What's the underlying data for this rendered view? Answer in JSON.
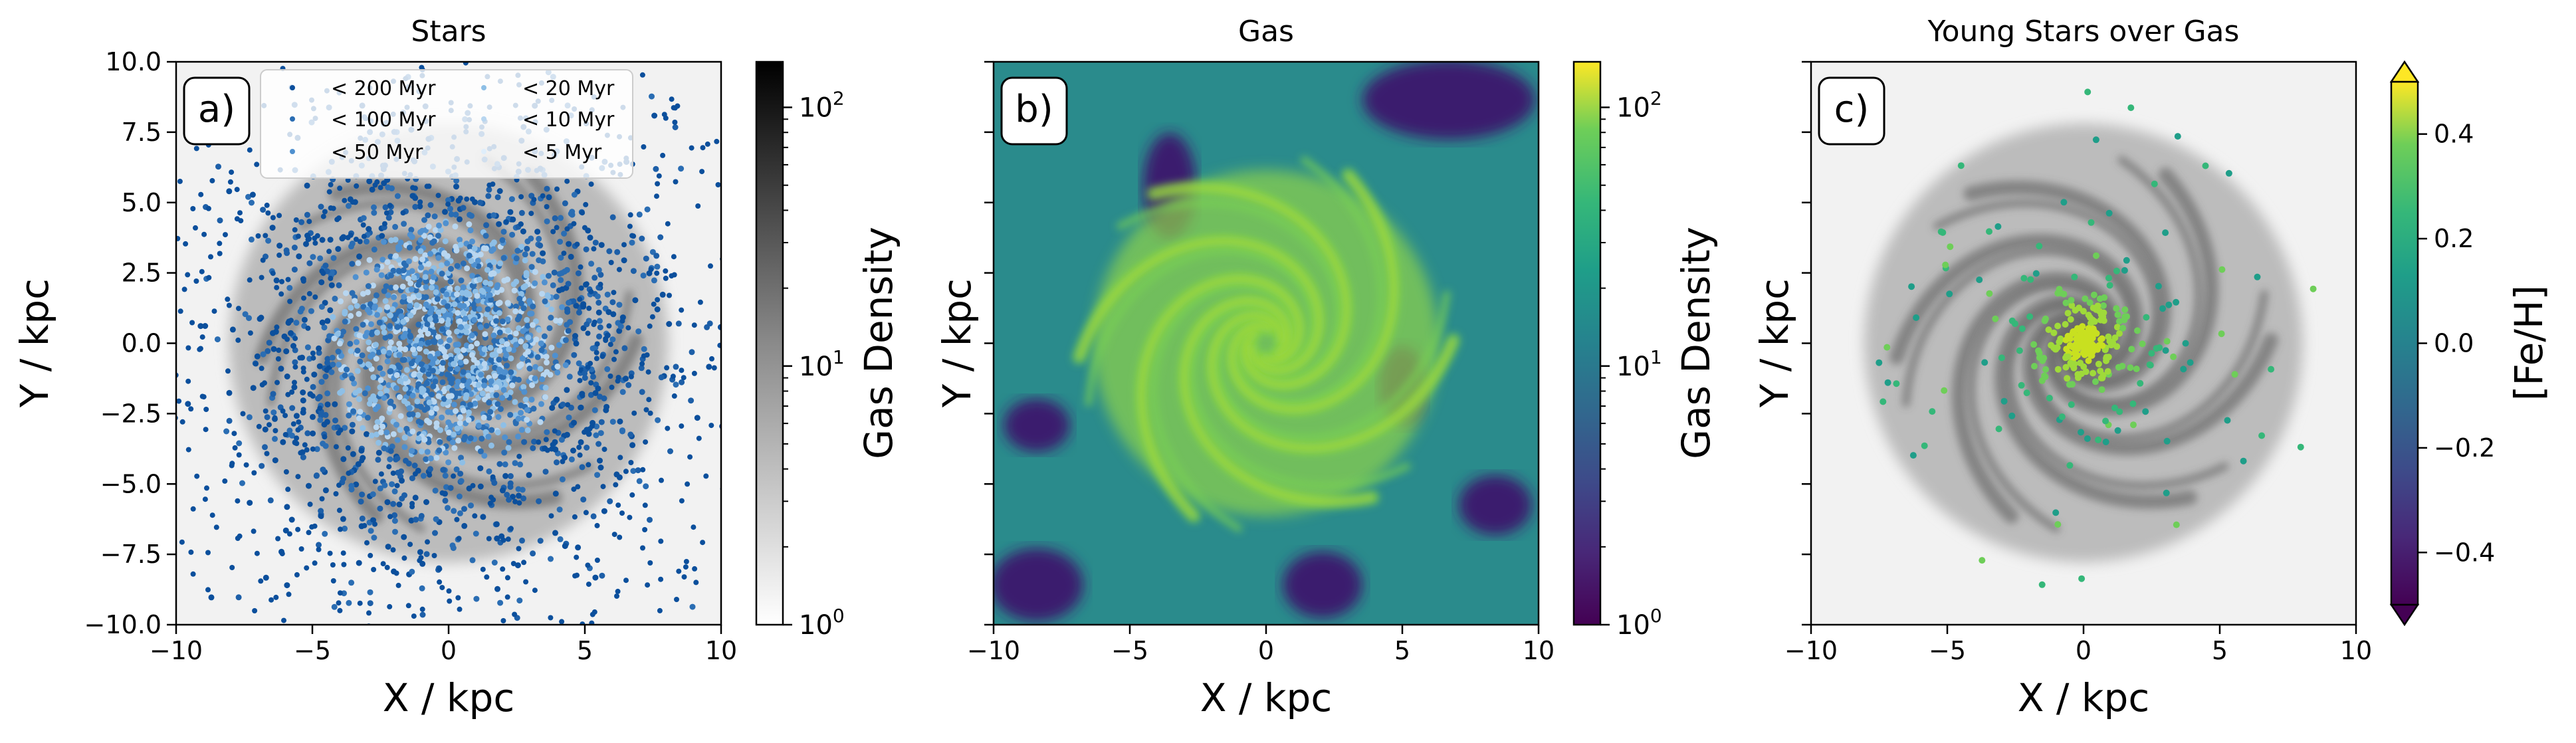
{
  "chart_data": [
    {
      "type": "heatmap",
      "panel_label": "a)",
      "title": "Stars",
      "xlabel": "X / kpc",
      "ylabel": "Y / kpc",
      "xlim": [
        -10,
        10
      ],
      "ylim": [
        -10,
        10
      ],
      "xticks": [
        "−10",
        "−5",
        "0",
        "5",
        "10"
      ],
      "yticks": [
        "−10.0",
        "−7.5",
        "−5.0",
        "−2.5",
        "0.0",
        "2.5",
        "5.0",
        "7.5",
        "10.0"
      ],
      "colormap": "Greys",
      "background": "gas density (log scale)",
      "overlay": "scatter of stars colored by age",
      "legend": {
        "placement": "top",
        "entries": [
          {
            "label": "< 200 Myr",
            "color": "#0b4f9c"
          },
          {
            "label": "< 20 Myr",
            "color": "#8ebfe6"
          },
          {
            "label": "< 100 Myr",
            "color": "#2a6db3"
          },
          {
            "label": "< 10 Myr",
            "color": "#b8d6f0"
          },
          {
            "label": "< 50 Myr",
            "color": "#4f90cf"
          },
          {
            "label": "< 5 Myr",
            "color": "#dfeefb"
          }
        ]
      },
      "colorbar": {
        "label": "Gas Density",
        "scale": "log",
        "range": [
          1,
          150
        ],
        "ticks": [
          {
            "base": "10",
            "exp": "0",
            "value": 1
          },
          {
            "base": "10",
            "exp": "1",
            "value": 10
          },
          {
            "base": "10",
            "exp": "2",
            "value": 100
          }
        ],
        "colormap": "Greys"
      }
    },
    {
      "type": "heatmap",
      "panel_label": "b)",
      "title": "Gas",
      "xlabel": "X / kpc",
      "ylabel": "Y / kpc",
      "xlim": [
        -10,
        10
      ],
      "ylim": [
        -10,
        10
      ],
      "xticks": [
        "−10",
        "−5",
        "0",
        "5",
        "10"
      ],
      "colormap": "viridis",
      "colorbar": {
        "label": "Gas Density",
        "scale": "log",
        "range": [
          1,
          150
        ],
        "ticks": [
          {
            "base": "10",
            "exp": "0",
            "value": 1
          },
          {
            "base": "10",
            "exp": "1",
            "value": 10
          },
          {
            "base": "10",
            "exp": "2",
            "value": 100
          }
        ],
        "colormap": "viridis"
      }
    },
    {
      "type": "heatmap",
      "panel_label": "c)",
      "title": "Young Stars over Gas",
      "xlabel": "X / kpc",
      "ylabel": "Y / kpc",
      "xlim": [
        -10,
        10
      ],
      "ylim": [
        -10,
        10
      ],
      "xticks": [
        "−10",
        "−5",
        "0",
        "5",
        "10"
      ],
      "colormap": "Greys",
      "overlay": "scatter of young stars colored by [Fe/H]",
      "colorbar": {
        "label": "[Fe/H]",
        "scale": "linear",
        "range": [
          -0.5,
          0.5
        ],
        "extend": "both",
        "ticks": [
          {
            "label": "−0.4",
            "value": -0.4
          },
          {
            "label": "−0.2",
            "value": -0.2
          },
          {
            "label": "0.0",
            "value": 0.0
          },
          {
            "label": "0.2",
            "value": 0.2
          },
          {
            "label": "0.4",
            "value": 0.4
          }
        ],
        "colormap": "viridis"
      }
    }
  ]
}
